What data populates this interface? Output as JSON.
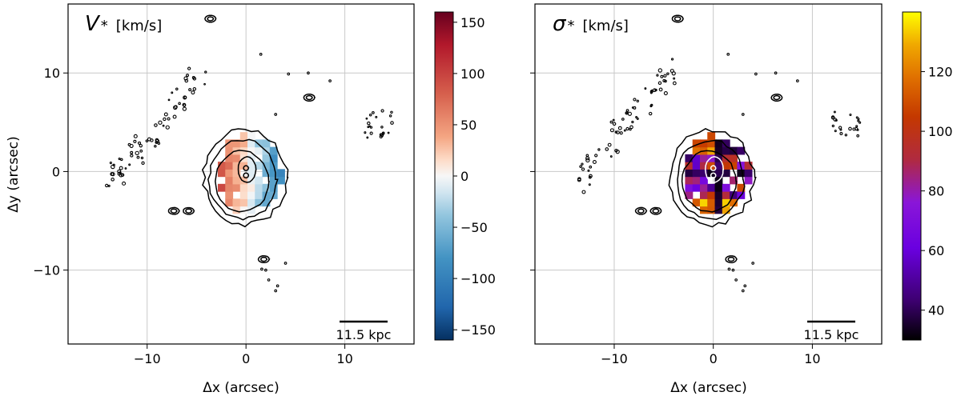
{
  "chart_data": [
    {
      "type": "heatmap",
      "panel": "left",
      "title_symbol": "V",
      "title_subscript": "*",
      "title_unit": "[km/s]",
      "xlabel": "Δx (arcsec)",
      "ylabel": "Δy (arcsec)",
      "xlim": [
        -18,
        17
      ],
      "ylim": [
        -17.5,
        17
      ],
      "xticks": [
        -10,
        0,
        10
      ],
      "xtick_labels": [
        "−10",
        "0",
        "10"
      ],
      "yticks": [
        -10,
        0,
        10
      ],
      "ytick_labels": [
        "−10",
        "0",
        "10"
      ],
      "grid": true,
      "colormap": "RdBu_r",
      "colorbar_range": [
        -160,
        160
      ],
      "colorbar_ticks": [
        150,
        100,
        50,
        0,
        -50,
        -100,
        -150
      ],
      "colorbar_tick_labels": [
        "150",
        "100",
        "50",
        "0",
        "−50",
        "−100",
        "−150"
      ],
      "scale_bar_label": "11.5 kpc",
      "scale_bar_x": [
        10,
        15
      ],
      "scale_bar_y": -15,
      "map_summary": "Stellar velocity field: receding (red, ~+40 to +80) on the east/left side, approaching (blue, ~−40 to −80) on the west/right side of the nucleus at (0,0)."
    },
    {
      "type": "heatmap",
      "panel": "right",
      "title_symbol": "σ",
      "title_subscript": "*",
      "title_unit": "[km/s]",
      "xlabel": "Δx (arcsec)",
      "ylabel": "",
      "xlim": [
        -18,
        17
      ],
      "ylim": [
        -17.5,
        17
      ],
      "xticks": [
        -10,
        0,
        10
      ],
      "xtick_labels": [
        "−10",
        "0",
        "10"
      ],
      "yticks": [
        -10,
        0,
        10
      ],
      "grid": true,
      "colormap": "gnuplot",
      "colorbar_range": [
        30,
        140
      ],
      "colorbar_ticks": [
        120,
        100,
        80,
        60,
        40
      ],
      "colorbar_tick_labels": [
        "120",
        "100",
        "80",
        "60",
        "40"
      ],
      "scale_bar_label": "11.5 kpc",
      "scale_bar_x": [
        10,
        15
      ],
      "scale_bar_y": -15,
      "map_summary": "Stellar velocity dispersion map: high values (~110–135) on the upper-left and lower rim, low values (~30–50) across the central cross and upper right."
    }
  ]
}
